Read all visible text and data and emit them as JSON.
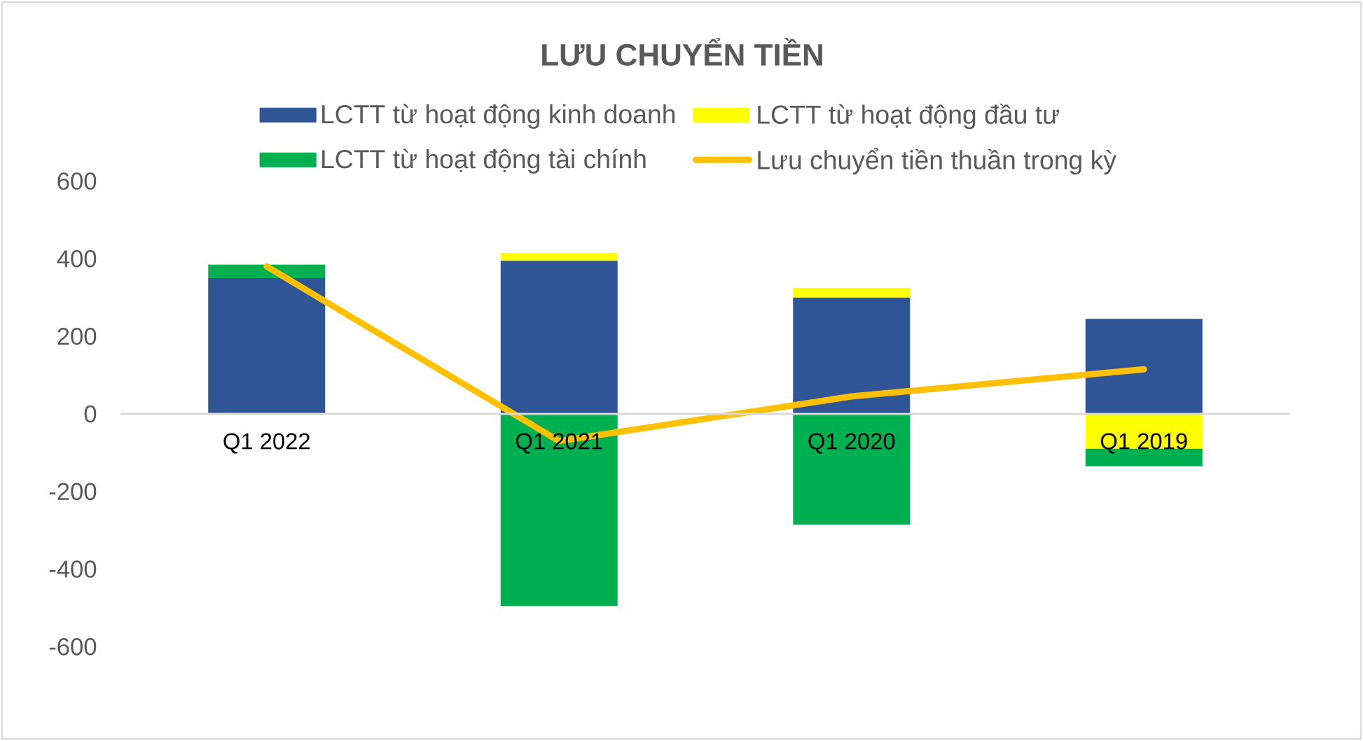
{
  "chart_data": {
    "type": "bar",
    "title": "LƯU CHUYỂN TIỀN",
    "categories": [
      "Q1 2022",
      "Q1 2021",
      "Q1 2020",
      "Q1 2019"
    ],
    "stacked": true,
    "series": [
      {
        "name": "LCTT từ hoạt động kinh doanh",
        "color": "#2f5597",
        "values": [
          350,
          395,
          300,
          245
        ]
      },
      {
        "name": "LCTT từ hoạt động đầu tư",
        "color": "#ffff00",
        "values": [
          null,
          20,
          25,
          -90
        ]
      },
      {
        "name": "LCTT từ hoạt động tài chính",
        "color": "#00b050",
        "values": [
          35,
          -495,
          -285,
          -45
        ]
      },
      {
        "name": "Lưu chuyển tiền thuần trong kỳ",
        "type": "line",
        "color": "#ffc000",
        "values": [
          380,
          -70,
          45,
          115
        ]
      }
    ],
    "ylim": [
      -600,
      600
    ],
    "yticks": [
      -600,
      -400,
      -200,
      0,
      200,
      400,
      600
    ],
    "grid": false,
    "legend": "top"
  }
}
